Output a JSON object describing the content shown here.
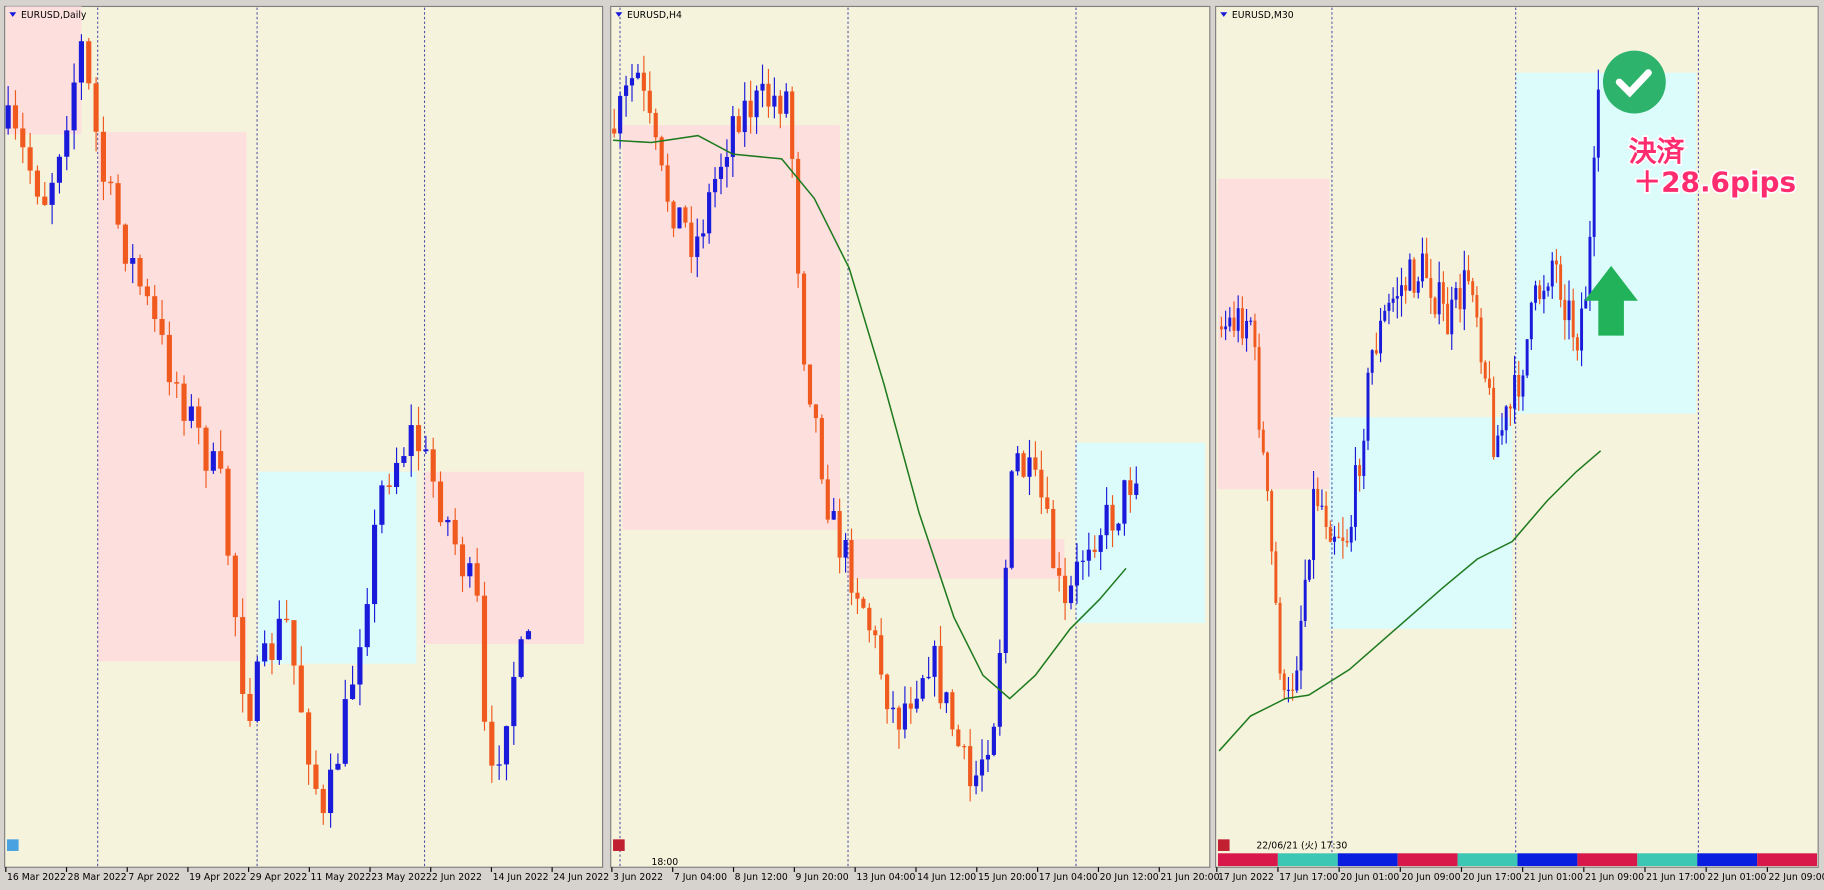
{
  "panels": [
    {
      "title": "EURUSD,Daily",
      "x_labels": [
        "16 Mar 2022",
        "28 Mar 2022",
        "7 Apr 2022",
        "19 Apr 2022",
        "29 Apr 2022",
        "11 May 2022",
        "23 May 2022",
        "2 Jun 2022",
        "14 Jun 2022",
        "24 Jun 2022"
      ]
    },
    {
      "title": "EURUSD,H4",
      "x_labels": [
        "3 Jun 2022",
        "7 Jun 04:00",
        "8 Jun 12:00",
        "9 Jun 20:00",
        "13 Jun 04:00",
        "14 Jun 12:00",
        "15 Jun 20:00",
        "17 Jun 04:00",
        "20 Jun 12:00",
        "21 Jun 20:00"
      ]
    },
    {
      "title": "EURUSD,M30",
      "x_labels": [
        "17 Jun 2022",
        "17 Jun 17:00",
        "20 Jun 01:00",
        "20 Jun 09:00",
        "20 Jun 17:00",
        "21 Jun 01:00",
        "21 Jun 09:00",
        "21 Jun 17:00",
        "22 Jun 01:00",
        "22 Jun 09:00"
      ]
    }
  ],
  "time_label": "18:00",
  "crosshair_time": "22/06/21 (火) 17:30",
  "annotation": {
    "line1": "決済",
    "line2": "＋28.6pips"
  }
}
